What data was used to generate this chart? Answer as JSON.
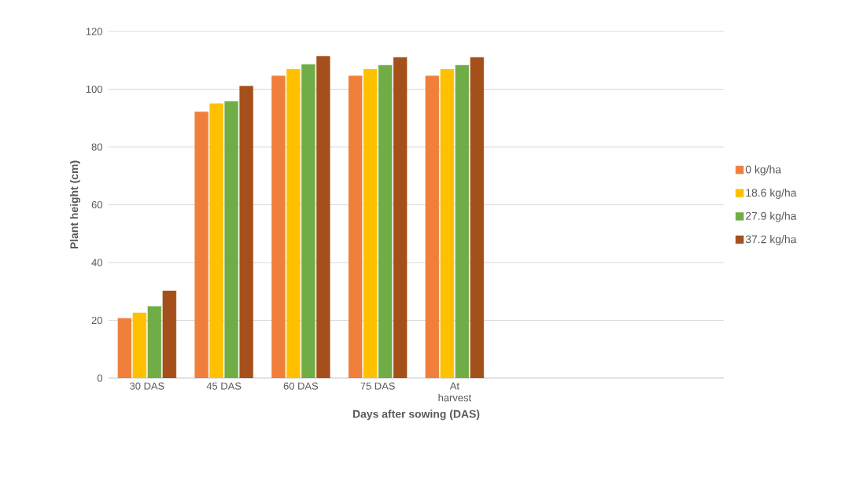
{
  "chart_data": {
    "type": "bar",
    "xlabel": "Days after sowing (DAS)",
    "ylabel": "Plant height (cm)",
    "categories": [
      "30 DAS",
      "45 DAS",
      "60 DAS",
      "75 DAS",
      "At harvest",
      null,
      null,
      null
    ],
    "series": [
      {
        "name": "0 kg/ha",
        "color": "#f07f3c",
        "values": [
          20.7,
          92.2,
          104.6,
          104.6,
          104.6,
          null,
          null,
          null
        ]
      },
      {
        "name": "18.6 kg/ha",
        "color": "#ffc000",
        "values": [
          22.6,
          95.0,
          106.9,
          106.9,
          106.9,
          null,
          null,
          null
        ]
      },
      {
        "name": "27.9 kg/ha",
        "color": "#70ad47",
        "values": [
          24.8,
          95.8,
          108.6,
          108.3,
          108.3,
          null,
          null,
          null
        ]
      },
      {
        "name": "37.2 kg/ha",
        "color": "#a5501b",
        "values": [
          30.2,
          101.1,
          111.4,
          111.0,
          111.0,
          null,
          null,
          null
        ]
      }
    ],
    "ylim": [
      0,
      120
    ],
    "yticks": [
      0,
      20,
      40,
      60,
      80,
      100,
      120
    ],
    "grid": "y",
    "legend": "right"
  }
}
